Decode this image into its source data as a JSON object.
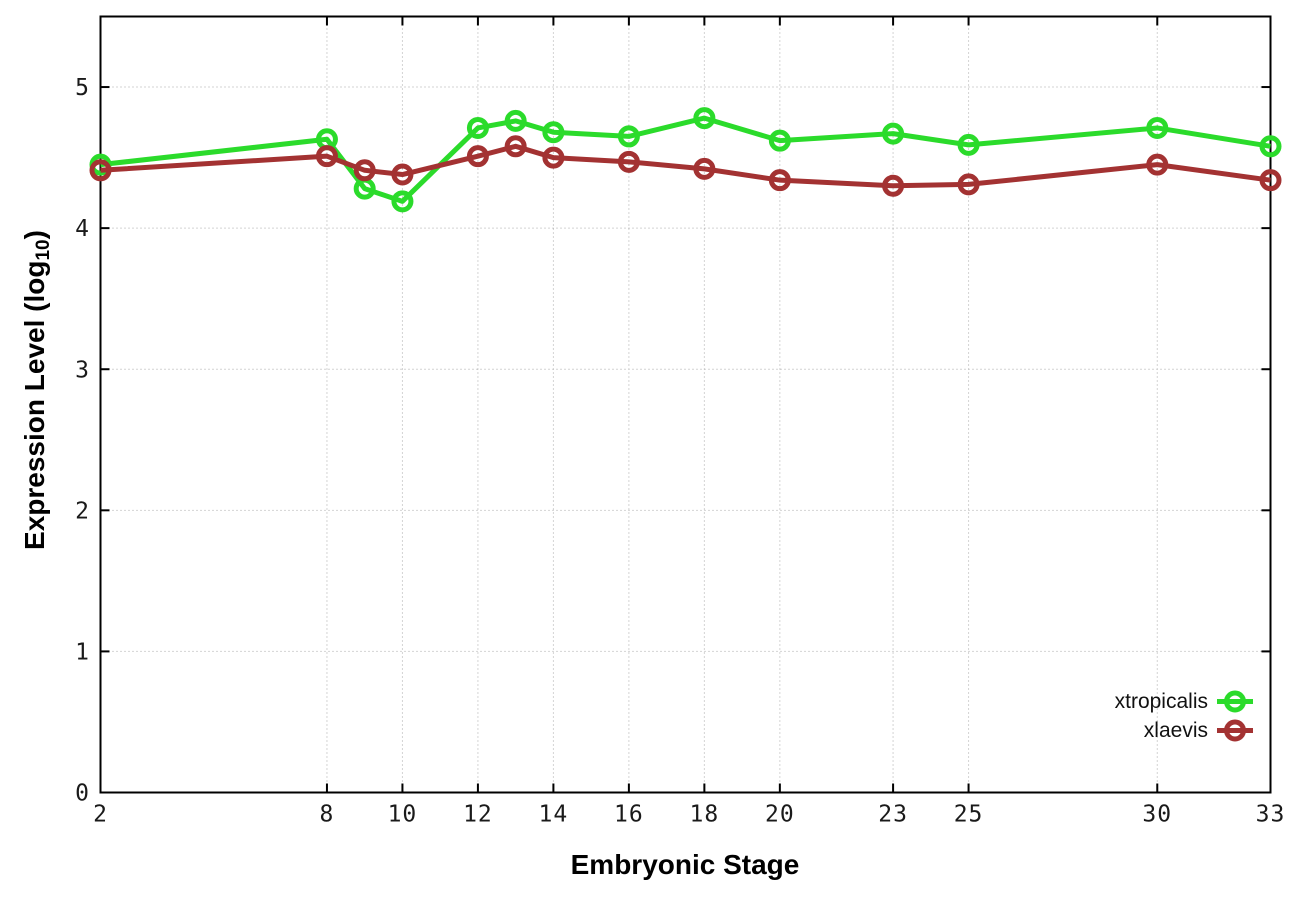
{
  "chart_data": {
    "type": "line",
    "title": "",
    "xlabel": "Embryonic Stage",
    "ylabel_prefix": "Expression Level (log",
    "ylabel_subscript": "10",
    "ylabel_suffix": ")",
    "x": [
      2,
      8,
      9,
      10,
      12,
      13,
      14,
      16,
      18,
      20,
      23,
      25,
      30,
      33
    ],
    "x_ticks": [
      2,
      8,
      10,
      12,
      14,
      16,
      18,
      20,
      23,
      25,
      30,
      33
    ],
    "y_ticks": [
      0,
      1,
      2,
      3,
      4,
      5
    ],
    "xlim": [
      2,
      33
    ],
    "ylim": [
      0,
      5.5
    ],
    "grid": true,
    "legend_position": "inside-right-lower",
    "axis_color": "#000000",
    "grid_color": "#a8a8a8",
    "tick_label_color": "#1a1a1a",
    "series": [
      {
        "name": "xtropicalis",
        "color": "#2bdb2b",
        "marker": "open-circle",
        "values": [
          4.45,
          4.63,
          4.28,
          4.19,
          4.71,
          4.76,
          4.68,
          4.65,
          4.78,
          4.62,
          4.67,
          4.59,
          4.71,
          4.58
        ]
      },
      {
        "name": "xlaevis",
        "color": "#a33232",
        "marker": "open-circle",
        "values": [
          4.41,
          4.51,
          4.41,
          4.38,
          4.51,
          4.58,
          4.5,
          4.47,
          4.42,
          4.34,
          4.3,
          4.31,
          4.45,
          4.34
        ]
      }
    ]
  }
}
